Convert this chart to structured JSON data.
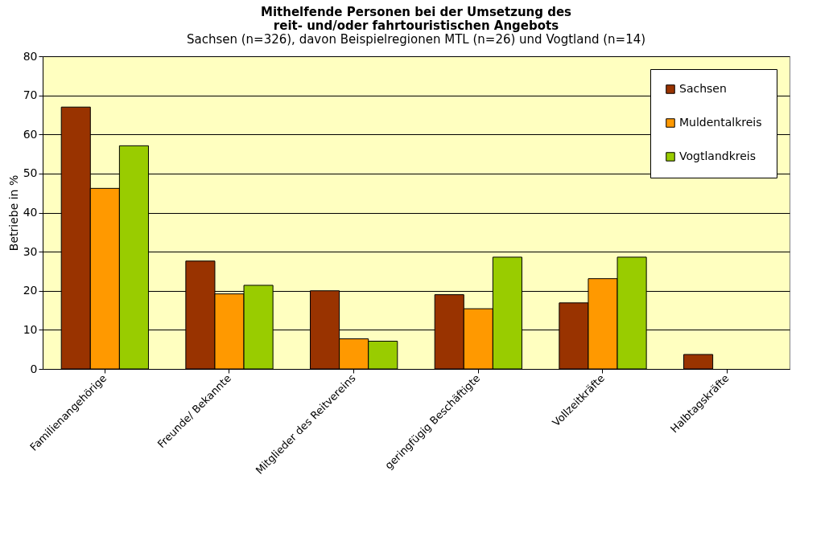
{
  "chart_data": {
    "type": "bar",
    "title": "Mithelfende Personen bei der Umsetzung des reit- und/oder fahrtouristischen Angebots",
    "subtitle": "Sachsen (n=326), davon Beispielregionen MTL (n=26) und Vogtland (n=14)",
    "ylabel": "Betriebe in %",
    "categories": [
      "Familienangehörige",
      "Freunde/ Bekannte",
      "Mitglieder des Reitvereins",
      "geringfügig Beschäftigte",
      "Vollzeitkräfte",
      "Halbtagskräfte"
    ],
    "series": [
      {
        "name": "Sachsen",
        "color": "#993300",
        "values": [
          67.0,
          27.6,
          20.0,
          19.0,
          16.9,
          3.7
        ]
      },
      {
        "name": "Muldentalkreis",
        "color": "#ff9900",
        "values": [
          46.2,
          19.2,
          7.7,
          15.4,
          23.1,
          null
        ]
      },
      {
        "name": "Vogtlandkreis",
        "color": "#99cc00",
        "values": [
          57.1,
          21.4,
          7.1,
          28.6,
          28.6,
          null
        ]
      }
    ],
    "ylim": [
      0,
      80
    ],
    "yticks": [
      0,
      10,
      20,
      30,
      40,
      50,
      60,
      70,
      80
    ],
    "grid": "y",
    "legend": "top right"
  }
}
